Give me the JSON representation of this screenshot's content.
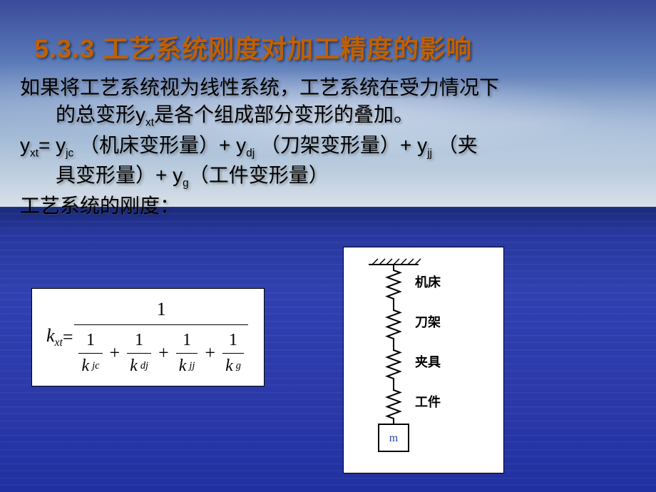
{
  "slide": {
    "title": "5.3.3  工艺系统刚度对加工精度的影响",
    "paragraph1_a": "如果将工艺系统视为线性系统，工艺系统在受力情况下",
    "paragraph1_b": "的总变形y",
    "paragraph1_b_sub": "xt",
    "paragraph1_c": "是各个组成部分变形的叠加。",
    "eq_line": {
      "y_xt": "y",
      "y_xt_sub": "xt",
      "eq": "= ",
      "y_jc": "y",
      "y_jc_sub": "jc",
      "jc_note": " （机床变形量）",
      "plus1": "+ ",
      "y_dj": "y",
      "y_dj_sub": "dj",
      "dj_note": " （刀架变形量）",
      "plus2": "+ ",
      "y_jj": "y",
      "y_jj_sub": "jj",
      "jj_note": " （夹",
      "jj_note2": "具变形量）",
      "plus3": "+ ",
      "y_g": "y",
      "y_g_sub": "g",
      "g_note": "（工件变形量）"
    },
    "paragraph3": "工艺系统的刚度：",
    "formula": {
      "lhs_k": "k",
      "lhs_sub": "xt",
      "equals": " = ",
      "numerator": "1",
      "terms": [
        {
          "num": "1",
          "k": "k",
          "sub": "jc"
        },
        {
          "num": "1",
          "k": "k",
          "sub": "dj"
        },
        {
          "num": "1",
          "k": "k",
          "sub": "jj"
        },
        {
          "num": "1",
          "k": "k",
          "sub": "g"
        }
      ],
      "plus": "+"
    },
    "diagram": {
      "type": "spring-series",
      "labels": [
        "机床",
        "刀架",
        "夹具",
        "工件"
      ],
      "mass_label": "m",
      "label_fontsize": 18,
      "mass_fontsize": 16,
      "colors": {
        "stroke": "#000000",
        "mass_text": "#2a4aa8",
        "background": "#ffffff"
      },
      "spring": {
        "coils": 6,
        "amplitude": 9,
        "segment_height": 56,
        "width": 2
      }
    },
    "colors": {
      "title": "#c06000",
      "body": "#000000",
      "sky_top": "#3a4a9a",
      "sky_bottom": "#d8e0e8",
      "ocean_top": "#1a2a7a",
      "ocean_bottom": "#2030a0"
    }
  }
}
